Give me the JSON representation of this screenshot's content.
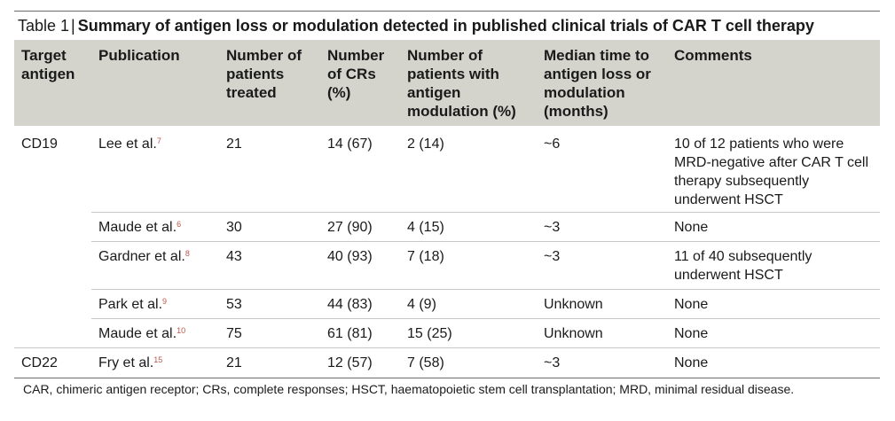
{
  "table": {
    "label": "Table 1",
    "separator": "|",
    "title": "Summary of antigen loss or modulation detected in published clinical trials of CAR T cell therapy",
    "headers": [
      "Target antigen",
      "Publication",
      "Number of patients treated",
      "Number of CRs (%)",
      "Number of patients with antigen modulation (%)",
      "Median time to antigen loss or modulation (months)",
      "Comments"
    ],
    "groups": [
      {
        "antigen": "CD19",
        "rows": [
          {
            "publication": "Lee et al.",
            "ref": "7",
            "patients": "21",
            "crs": "14 (67)",
            "modulation": "2 (14)",
            "median_time": "~6",
            "comments": "10 of 12 patients who were MRD-negative after CAR T cell therapy subsequently underwent HSCT"
          },
          {
            "publication": "Maude et al.",
            "ref": "6",
            "patients": "30",
            "crs": "27 (90)",
            "modulation": "4 (15)",
            "median_time": "~3",
            "comments": "None"
          },
          {
            "publication": "Gardner et al.",
            "ref": "8",
            "patients": "43",
            "crs": "40 (93)",
            "modulation": "7 (18)",
            "median_time": "~3",
            "comments": "11 of 40 subsequently underwent HSCT"
          },
          {
            "publication": "Park et al.",
            "ref": "9",
            "patients": "53",
            "crs": "44 (83)",
            "modulation": "4 (9)",
            "median_time": "Unknown",
            "comments": "None"
          },
          {
            "publication": "Maude et al.",
            "ref": "10",
            "patients": "75",
            "crs": "61 (81)",
            "modulation": "15 (25)",
            "median_time": "Unknown",
            "comments": "None"
          }
        ]
      },
      {
        "antigen": "CD22",
        "rows": [
          {
            "publication": "Fry et al.",
            "ref": "15",
            "patients": "21",
            "crs": "12 (57)",
            "modulation": "7 (58)",
            "median_time": "~3",
            "comments": "None"
          }
        ]
      }
    ],
    "footnote": "CAR, chimeric antigen receptor; CRs, complete responses; HSCT, haematopoietic stem cell transplantation; MRD, minimal residual disease."
  }
}
